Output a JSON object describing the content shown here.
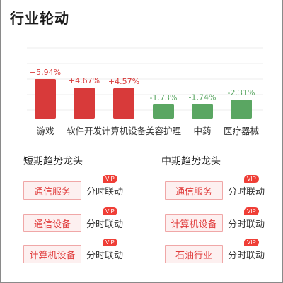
{
  "header": {
    "title": "行业轮动"
  },
  "chart_data": {
    "type": "bar",
    "categories": [
      "游戏",
      "软件开发",
      "计算机设备",
      "美容护理",
      "中药",
      "医疗器械"
    ],
    "values": [
      5.94,
      4.67,
      4.57,
      -1.73,
      -1.74,
      -2.31
    ],
    "labels": [
      "+5.94%",
      "+4.67%",
      "+4.57%",
      "-1.73%",
      "-1.74%",
      "-2.31%"
    ],
    "colors": {
      "positive": "#d83a3a",
      "positive_text": "#d83a3a",
      "negative": "#5aa662",
      "negative_text": "#5aa662"
    },
    "grid": true
  },
  "short_term": {
    "title": "短期趋势龙头",
    "items": [
      {
        "name": "通信服务",
        "link": "分时联动",
        "badge": "VIP"
      },
      {
        "name": "通信设备",
        "link": "分时联动",
        "badge": "VIP"
      },
      {
        "name": "计算机设备",
        "link": "分时联动",
        "badge": "VIP"
      }
    ]
  },
  "mid_term": {
    "title": "中期趋势龙头",
    "items": [
      {
        "name": "通信服务",
        "link": "分时联动",
        "badge": "VIP"
      },
      {
        "name": "计算机设备",
        "link": "分时联动",
        "badge": "VIP"
      },
      {
        "name": "石油行业",
        "link": "分时联动",
        "badge": "VIP"
      }
    ]
  }
}
